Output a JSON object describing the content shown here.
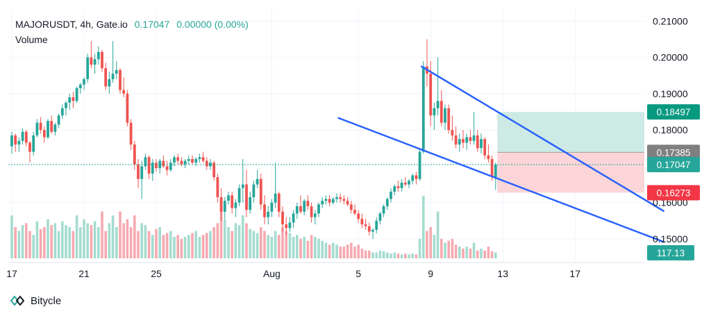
{
  "header": {
    "symbol": "MAJORUSDT",
    "interval": "4h",
    "exchange": "Gate.io",
    "price": "0.17047",
    "change": "0.00000 (0.00%)",
    "volume_label": "Volume"
  },
  "footer": {
    "brand": "Bitycle"
  },
  "colors": {
    "up": "#26a69a",
    "up_bar": "#ef5350",
    "down": "#ef5350",
    "trendline": "#2962ff",
    "target_zone": "#cdeae5",
    "stop_zone": "#fbd5d8",
    "entry_badge": "#7f7f7f",
    "target_badge": "#089981",
    "stop_badge": "#f23645"
  },
  "chart_data": {
    "type": "candlestick",
    "title": "",
    "ylim": [
      0.1435,
      0.2135
    ],
    "y_ticks": [
      "0.21000",
      "0.20000",
      "0.19000",
      "0.18000",
      "0.16000",
      "0.15000"
    ],
    "x_ticks": [
      "17",
      "21",
      "25",
      "Aug",
      "5",
      "9",
      "13",
      "17"
    ],
    "grid": true,
    "candles": [
      [
        0.1755,
        0.1795,
        0.1735,
        0.1785
      ],
      [
        0.1785,
        0.179,
        0.174,
        0.176
      ],
      [
        0.176,
        0.178,
        0.174,
        0.177
      ],
      [
        0.177,
        0.1805,
        0.176,
        0.1795
      ],
      [
        0.1795,
        0.18,
        0.1755,
        0.1765
      ],
      [
        0.1765,
        0.177,
        0.171,
        0.174
      ],
      [
        0.174,
        0.1795,
        0.173,
        0.1785
      ],
      [
        0.1785,
        0.183,
        0.178,
        0.182
      ],
      [
        0.182,
        0.1835,
        0.179,
        0.18
      ],
      [
        0.18,
        0.181,
        0.1765,
        0.178
      ],
      [
        0.178,
        0.183,
        0.1775,
        0.1825
      ],
      [
        0.1825,
        0.184,
        0.179,
        0.1795
      ],
      [
        0.1795,
        0.182,
        0.1785,
        0.1815
      ],
      [
        0.1815,
        0.1845,
        0.1805,
        0.184
      ],
      [
        0.184,
        0.187,
        0.183,
        0.186
      ],
      [
        0.186,
        0.188,
        0.184,
        0.1875
      ],
      [
        0.1875,
        0.19,
        0.1855,
        0.189
      ],
      [
        0.189,
        0.1905,
        0.186,
        0.188
      ],
      [
        0.188,
        0.192,
        0.1875,
        0.1915
      ],
      [
        0.1915,
        0.193,
        0.19,
        0.1925
      ],
      [
        0.1925,
        0.1945,
        0.191,
        0.194
      ],
      [
        0.194,
        0.201,
        0.193,
        0.2
      ],
      [
        0.2,
        0.2045,
        0.197,
        0.198
      ],
      [
        0.198,
        0.201,
        0.1955,
        0.1995
      ],
      [
        0.1995,
        0.203,
        0.198,
        0.2015
      ],
      [
        0.2015,
        0.202,
        0.196,
        0.197
      ],
      [
        0.197,
        0.1985,
        0.191,
        0.192
      ],
      [
        0.192,
        0.196,
        0.19,
        0.194
      ],
      [
        0.194,
        0.2045,
        0.193,
        0.1955
      ],
      [
        0.1955,
        0.199,
        0.194,
        0.1965
      ],
      [
        0.1965,
        0.197,
        0.19,
        0.191
      ],
      [
        0.191,
        0.1945,
        0.189,
        0.19
      ],
      [
        0.19,
        0.191,
        0.181,
        0.182
      ],
      [
        0.182,
        0.183,
        0.1745,
        0.176
      ],
      [
        0.176,
        0.177,
        0.169,
        0.1705
      ],
      [
        0.1705,
        0.172,
        0.164,
        0.1665
      ],
      [
        0.1665,
        0.1715,
        0.161,
        0.17
      ],
      [
        0.17,
        0.1735,
        0.169,
        0.1725
      ],
      [
        0.1725,
        0.173,
        0.1665,
        0.168
      ],
      [
        0.168,
        0.172,
        0.166,
        0.171
      ],
      [
        0.171,
        0.172,
        0.1685,
        0.1695
      ],
      [
        0.1695,
        0.172,
        0.168,
        0.1715
      ],
      [
        0.1715,
        0.173,
        0.1695,
        0.17
      ],
      [
        0.17,
        0.1715,
        0.1675,
        0.169
      ],
      [
        0.169,
        0.172,
        0.1685,
        0.171
      ],
      [
        0.171,
        0.173,
        0.17,
        0.1725
      ],
      [
        0.1725,
        0.1735,
        0.1705,
        0.1715
      ],
      [
        0.1715,
        0.1725,
        0.17,
        0.1705
      ],
      [
        0.1705,
        0.172,
        0.1695,
        0.1715
      ],
      [
        0.1715,
        0.173,
        0.1705,
        0.172
      ],
      [
        0.172,
        0.173,
        0.1705,
        0.171
      ],
      [
        0.171,
        0.1725,
        0.17,
        0.172
      ],
      [
        0.172,
        0.1735,
        0.171,
        0.1725
      ],
      [
        0.1725,
        0.174,
        0.171,
        0.1715
      ],
      [
        0.1715,
        0.1725,
        0.169,
        0.17
      ],
      [
        0.17,
        0.172,
        0.169,
        0.171
      ],
      [
        0.171,
        0.1715,
        0.166,
        0.167
      ],
      [
        0.167,
        0.168,
        0.16,
        0.1615
      ],
      [
        0.1615,
        0.164,
        0.155,
        0.1575
      ],
      [
        0.1575,
        0.1615,
        0.1555,
        0.1605
      ],
      [
        0.1605,
        0.163,
        0.1595,
        0.162
      ],
      [
        0.162,
        0.163,
        0.157,
        0.1585
      ],
      [
        0.1585,
        0.161,
        0.156,
        0.16
      ],
      [
        0.16,
        0.165,
        0.159,
        0.164
      ],
      [
        0.164,
        0.172,
        0.16,
        0.165
      ],
      [
        0.165,
        0.169,
        0.156,
        0.158
      ],
      [
        0.158,
        0.163,
        0.157,
        0.1615
      ],
      [
        0.1615,
        0.166,
        0.16,
        0.165
      ],
      [
        0.165,
        0.169,
        0.164,
        0.1665
      ],
      [
        0.1665,
        0.168,
        0.158,
        0.1595
      ],
      [
        0.1595,
        0.162,
        0.154,
        0.156
      ],
      [
        0.156,
        0.159,
        0.154,
        0.1575
      ],
      [
        0.1575,
        0.161,
        0.156,
        0.16
      ],
      [
        0.16,
        0.171,
        0.1585,
        0.1625
      ],
      [
        0.1625,
        0.163,
        0.156,
        0.1575
      ],
      [
        0.1575,
        0.159,
        0.152,
        0.154
      ],
      [
        0.154,
        0.156,
        0.151,
        0.153
      ],
      [
        0.153,
        0.156,
        0.152,
        0.1545
      ],
      [
        0.1545,
        0.158,
        0.153,
        0.157
      ],
      [
        0.157,
        0.16,
        0.1555,
        0.159
      ],
      [
        0.159,
        0.162,
        0.157,
        0.1575
      ],
      [
        0.1575,
        0.161,
        0.1565,
        0.1605
      ],
      [
        0.1605,
        0.162,
        0.158,
        0.159
      ],
      [
        0.159,
        0.16,
        0.1545,
        0.156
      ],
      [
        0.156,
        0.158,
        0.154,
        0.157
      ],
      [
        0.157,
        0.16,
        0.156,
        0.1595
      ],
      [
        0.1595,
        0.1615,
        0.1585,
        0.1605
      ],
      [
        0.1605,
        0.162,
        0.1595,
        0.161
      ],
      [
        0.161,
        0.162,
        0.159,
        0.16
      ],
      [
        0.16,
        0.1615,
        0.1595,
        0.161
      ],
      [
        0.161,
        0.1625,
        0.16,
        0.1615
      ],
      [
        0.1615,
        0.1625,
        0.16,
        0.161
      ],
      [
        0.161,
        0.162,
        0.1595,
        0.1605
      ],
      [
        0.1605,
        0.1615,
        0.159,
        0.1595
      ],
      [
        0.1595,
        0.1605,
        0.157,
        0.158
      ],
      [
        0.158,
        0.1595,
        0.1565,
        0.157
      ],
      [
        0.157,
        0.158,
        0.1545,
        0.1555
      ],
      [
        0.1555,
        0.157,
        0.153,
        0.154
      ],
      [
        0.154,
        0.1555,
        0.1525,
        0.1535
      ],
      [
        0.1535,
        0.1545,
        0.151,
        0.152
      ],
      [
        0.152,
        0.153,
        0.15,
        0.1525
      ],
      [
        0.1525,
        0.156,
        0.1515,
        0.155
      ],
      [
        0.155,
        0.1575,
        0.154,
        0.157
      ],
      [
        0.157,
        0.1595,
        0.156,
        0.159
      ],
      [
        0.159,
        0.1615,
        0.158,
        0.161
      ],
      [
        0.161,
        0.164,
        0.16,
        0.163
      ],
      [
        0.163,
        0.165,
        0.162,
        0.1645
      ],
      [
        0.1645,
        0.166,
        0.163,
        0.164
      ],
      [
        0.164,
        0.1665,
        0.163,
        0.1655
      ],
      [
        0.1655,
        0.167,
        0.1645,
        0.165
      ],
      [
        0.165,
        0.1665,
        0.164,
        0.166
      ],
      [
        0.166,
        0.168,
        0.165,
        0.1675
      ],
      [
        0.1675,
        0.1685,
        0.165,
        0.1665
      ],
      [
        0.1665,
        0.175,
        0.166,
        0.174
      ],
      [
        0.174,
        0.199,
        0.1735,
        0.1975
      ],
      [
        0.1975,
        0.205,
        0.192,
        0.1955
      ],
      [
        0.1955,
        0.199,
        0.181,
        0.184
      ],
      [
        0.184,
        0.1875,
        0.18,
        0.186
      ],
      [
        0.186,
        0.2,
        0.184,
        0.188
      ],
      [
        0.188,
        0.191,
        0.181,
        0.182
      ],
      [
        0.182,
        0.187,
        0.18,
        0.186
      ],
      [
        0.186,
        0.187,
        0.179,
        0.18
      ],
      [
        0.18,
        0.184,
        0.177,
        0.1785
      ],
      [
        0.1785,
        0.181,
        0.175,
        0.176
      ],
      [
        0.176,
        0.179,
        0.174,
        0.1775
      ],
      [
        0.1775,
        0.18,
        0.175,
        0.1765
      ],
      [
        0.1765,
        0.179,
        0.1745,
        0.178
      ],
      [
        0.178,
        0.18,
        0.176,
        0.177
      ],
      [
        0.177,
        0.185,
        0.176,
        0.1785
      ],
      [
        0.1785,
        0.18,
        0.174,
        0.175
      ],
      [
        0.175,
        0.179,
        0.1735,
        0.1775
      ],
      [
        0.1775,
        0.178,
        0.172,
        0.173
      ],
      [
        0.173,
        0.176,
        0.171,
        0.172
      ],
      [
        0.172,
        0.173,
        0.166,
        0.167
      ],
      [
        0.167,
        0.171,
        0.1635,
        0.1705
      ]
    ],
    "volume": [
      110,
      80,
      70,
      85,
      90,
      70,
      60,
      95,
      75,
      80,
      100,
      85,
      90,
      70,
      95,
      85,
      80,
      70,
      110,
      80,
      100,
      90,
      85,
      95,
      80,
      120,
      70,
      90,
      110,
      80,
      120,
      90,
      100,
      80,
      110,
      70,
      90,
      85,
      70,
      60,
      75,
      80,
      60,
      65,
      70,
      55,
      60,
      50,
      55,
      60,
      65,
      70,
      55,
      60,
      65,
      70,
      80,
      90,
      130,
      100,
      80,
      70,
      90,
      85,
      110,
      90,
      75,
      70,
      65,
      80,
      70,
      60,
      55,
      70,
      60,
      80,
      70,
      65,
      55,
      60,
      50,
      55,
      45,
      60,
      55,
      50,
      45,
      40,
      35,
      40,
      35,
      30,
      30,
      35,
      40,
      30,
      35,
      25,
      20,
      20,
      15,
      15,
      20,
      18,
      15,
      12,
      15,
      12,
      10,
      12,
      10,
      12,
      10,
      50,
      160,
      70,
      80,
      60,
      120,
      50,
      40,
      45,
      50,
      35,
      30,
      25,
      30,
      25,
      40,
      20,
      25,
      20,
      30,
      18,
      15
    ],
    "vol_max": 160,
    "price_line": "0.17047",
    "position": {
      "entry": "0.17385",
      "target": "0.18497",
      "stop": "0.16273"
    },
    "trendlines": [
      {
        "x1": 113.5,
        "y1": 0.1975,
        "x2": 180.5,
        "y2": 0.1577
      },
      {
        "x1": 90.5,
        "y1": 0.1833,
        "x2": 180.5,
        "y2": 0.1492
      }
    ],
    "volume_badge": "117.13"
  }
}
